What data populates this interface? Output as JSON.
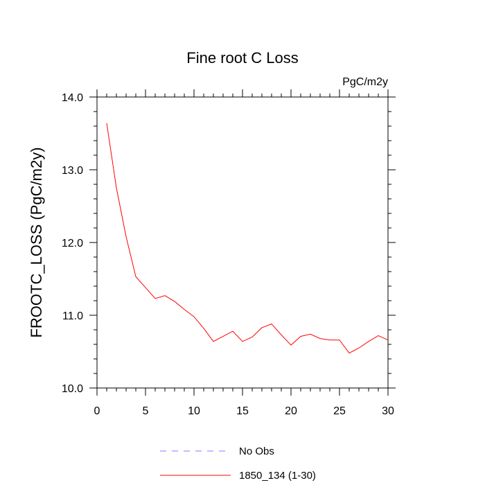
{
  "chart_data": {
    "type": "line",
    "title": "Fine root C Loss",
    "units_label": "PgC/m2y",
    "ylabel": "FROOTC_LOSS  (PgC/m2y)",
    "xlabel": "",
    "xlim": [
      0,
      30
    ],
    "ylim": [
      10.0,
      14.0
    ],
    "xticks": [
      0,
      5,
      10,
      15,
      20,
      25,
      30
    ],
    "yticks": [
      10.0,
      11.0,
      12.0,
      13.0,
      14.0
    ],
    "xtick_labels": [
      "0",
      "5",
      "10",
      "15",
      "20",
      "25",
      "30"
    ],
    "ytick_labels": [
      "10.0",
      "11.0",
      "12.0",
      "13.0",
      "14.0"
    ],
    "grid": false,
    "series": [
      {
        "name": "1850_134 (1-30)",
        "color": "#ff0000",
        "dash": "solid",
        "x": [
          1,
          2,
          3,
          4,
          5,
          6,
          7,
          8,
          9,
          10,
          11,
          12,
          13,
          14,
          15,
          16,
          17,
          18,
          19,
          20,
          21,
          22,
          23,
          24,
          25,
          26,
          27,
          28,
          29,
          30
        ],
        "y": [
          13.64,
          12.75,
          12.08,
          11.53,
          11.38,
          11.23,
          11.27,
          11.19,
          11.08,
          10.98,
          10.82,
          10.64,
          10.71,
          10.78,
          10.64,
          10.7,
          10.83,
          10.88,
          10.73,
          10.59,
          10.71,
          10.74,
          10.68,
          10.66,
          10.66,
          10.48,
          10.55,
          10.64,
          10.72,
          10.66
        ]
      }
    ],
    "legend": {
      "placement": "bottom",
      "entries": [
        {
          "label": "No Obs",
          "color": "#7f7fff",
          "dash": "dashed"
        },
        {
          "label": "1850_134 (1-30)",
          "color": "#ff0000",
          "dash": "solid"
        }
      ]
    }
  }
}
